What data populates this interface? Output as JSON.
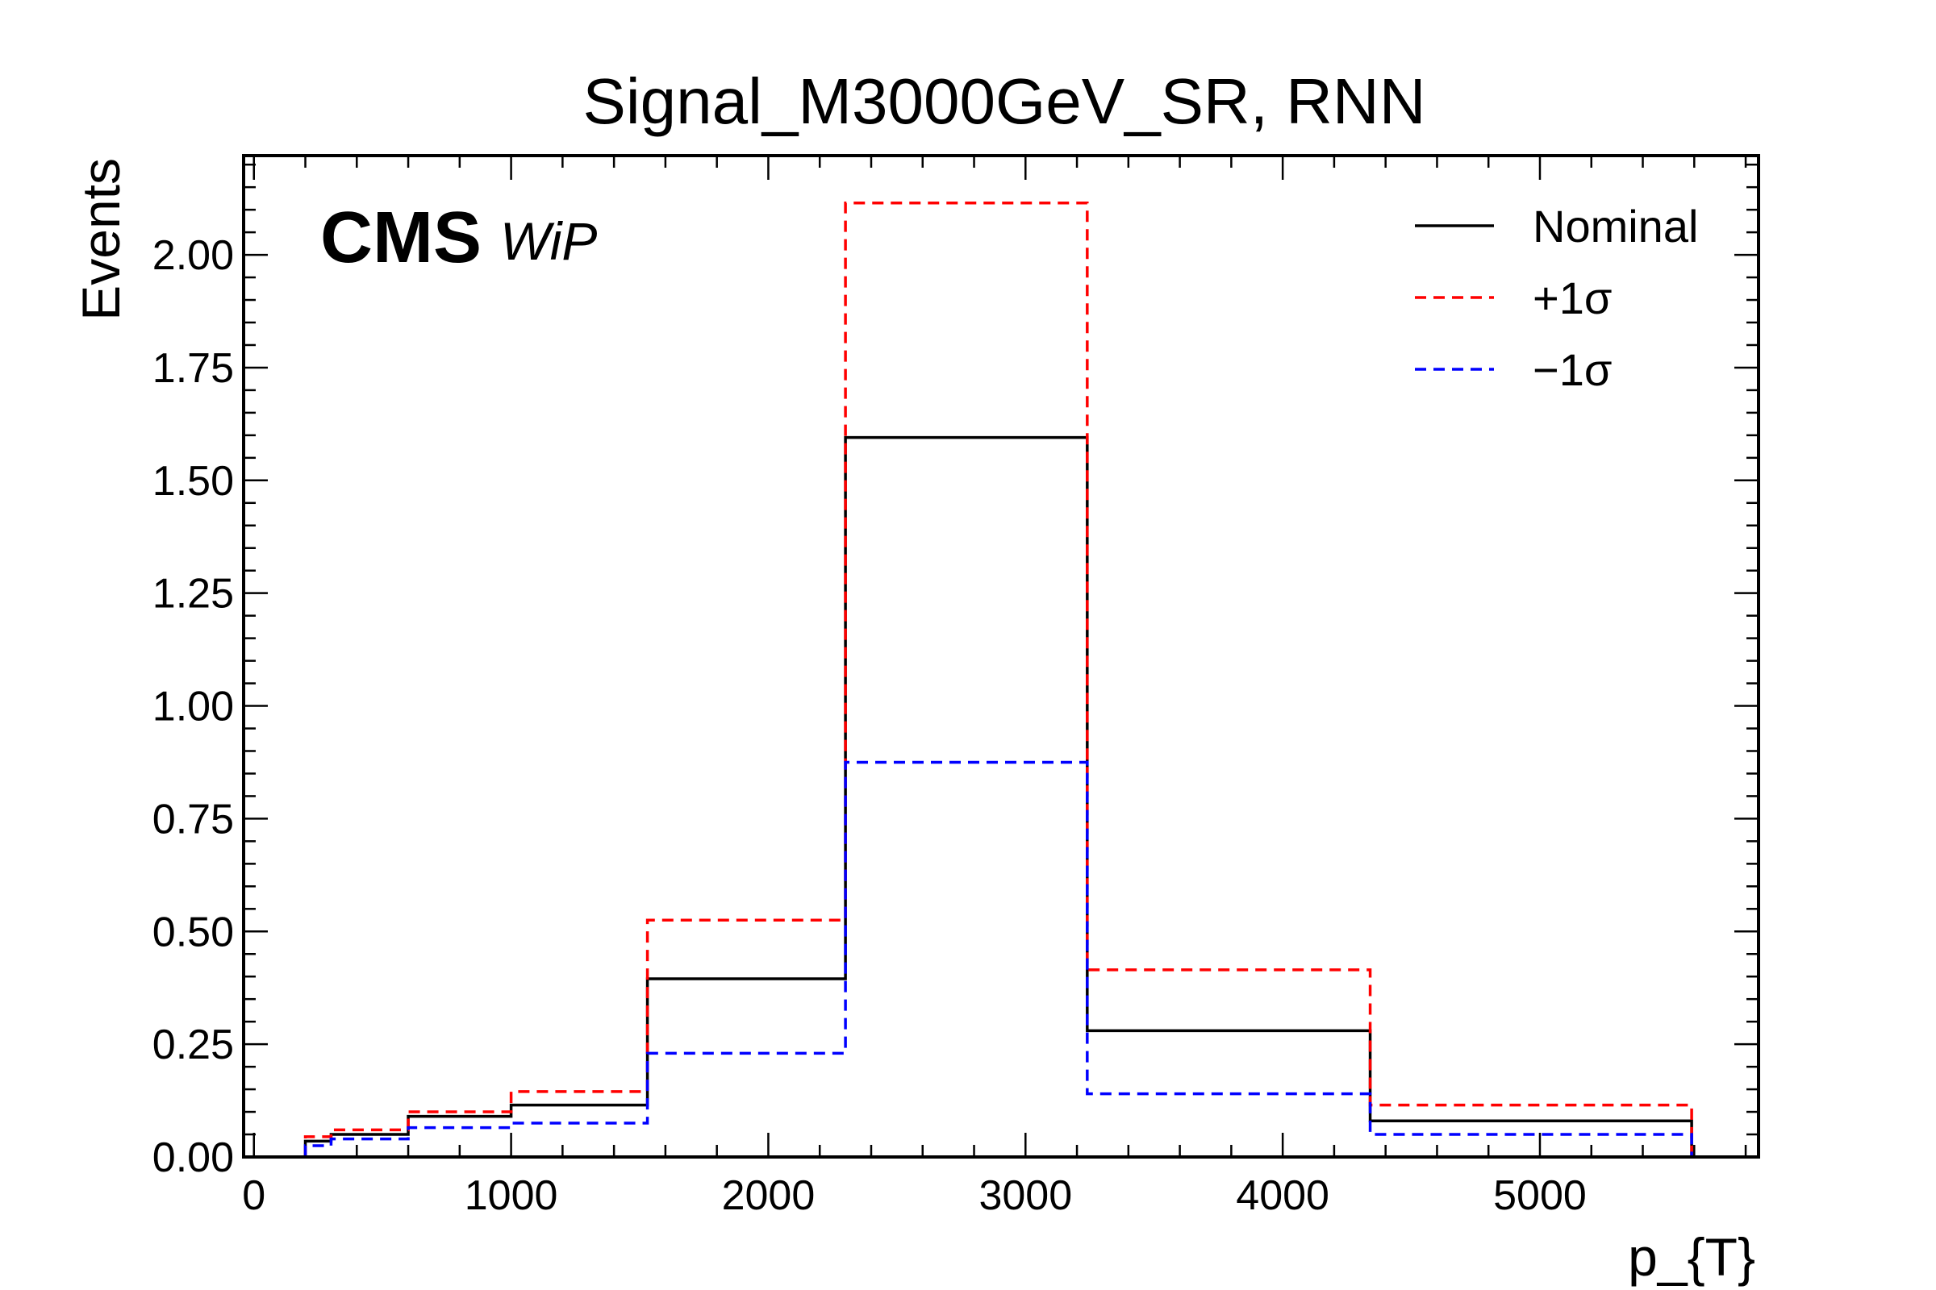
{
  "chart_data": {
    "type": "histogram-step",
    "title": "Signal_M3000GeV_SR, RNN",
    "xlabel": "p_{T}",
    "ylabel": "Events",
    "experiment_label": "CMS",
    "experiment_sublabel": "WiP",
    "xlim": [
      -40,
      5850
    ],
    "ylim": [
      0,
      2.22
    ],
    "x_ticks": [
      0,
      1000,
      2000,
      3000,
      4000,
      5000
    ],
    "y_ticks": [
      0.0,
      0.25,
      0.5,
      0.75,
      1.0,
      1.25,
      1.5,
      1.75,
      2.0
    ],
    "y_tick_labels": [
      "0.00",
      "0.25",
      "0.50",
      "0.75",
      "1.00",
      "1.25",
      "1.50",
      "1.75",
      "2.00"
    ],
    "bin_edges": [
      200,
      300,
      600,
      1000,
      1530,
      2300,
      3240,
      4340,
      5590
    ],
    "series": [
      {
        "name": "Nominal",
        "color": "#000000",
        "dashed": false,
        "values": [
          0.035,
          0.05,
          0.09,
          0.115,
          0.395,
          1.595,
          0.28,
          0.08
        ]
      },
      {
        "name": "+1σ",
        "color": "#ff0000",
        "dashed": true,
        "values": [
          0.045,
          0.06,
          0.1,
          0.145,
          0.525,
          2.115,
          0.415,
          0.115
        ]
      },
      {
        "name": "−1σ",
        "color": "#0000ff",
        "dashed": true,
        "values": [
          0.025,
          0.04,
          0.065,
          0.075,
          0.23,
          0.875,
          0.14,
          0.05
        ]
      }
    ],
    "legend_position": "top-right",
    "grid": false
  }
}
